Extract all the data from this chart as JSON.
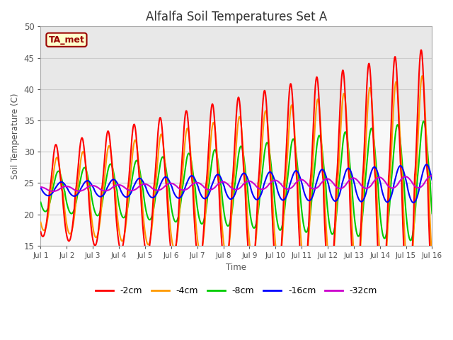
{
  "title": "Alfalfa Soil Temperatures Set A",
  "xlabel": "Time",
  "ylabel": "Soil Temperature (C)",
  "ylim": [
    15,
    50
  ],
  "xlim": [
    0,
    15
  ],
  "xtick_labels": [
    "Jul 1",
    "Jul 2",
    "Jul 3",
    "Jul 4",
    "Jul 5",
    "Jul 6",
    "Jul 7",
    "Jul 8",
    "Jul 9",
    "Jul 10",
    "Jul 11",
    "Jul 12",
    "Jul 13",
    "Jul 14",
    "Jul 15",
    "Jul 16"
  ],
  "ytick_values": [
    15,
    20,
    25,
    30,
    35,
    40,
    45,
    50
  ],
  "annotation": "TA_met",
  "annotation_color": "#990000",
  "annotation_bg": "#ffffcc",
  "plot_bg_color": "#f0f0f0",
  "fig_bg_color": "#ffffff",
  "upper_band_color": "#e8e8e8",
  "lower_band_color": "#f8f8f8",
  "colors": {
    "-2cm": "#ff0000",
    "-4cm": "#ff9900",
    "-8cm": "#00cc00",
    "-16cm": "#0000ff",
    "-32cm": "#cc00cc"
  },
  "legend_labels": [
    "-2cm",
    "-4cm",
    "-8cm",
    "-16cm",
    "-32cm"
  ],
  "n_points": 3000,
  "title_fontsize": 12,
  "linewidth": 1.5
}
